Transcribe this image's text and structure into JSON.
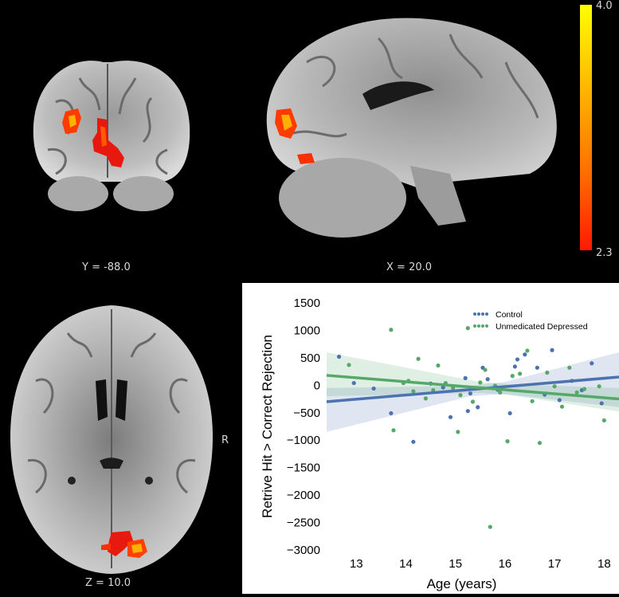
{
  "brain_views": {
    "coronal_label": "Y = -88.0",
    "sagittal_label": "X = 20.0",
    "axial_label": "Z = 10.0",
    "orientation_label": "R"
  },
  "colorbar": {
    "max_label": "4.0",
    "min_label": "2.3",
    "colors": [
      "#ffff00",
      "#ffb400",
      "#ff6a00",
      "#ff1a00"
    ]
  },
  "chart_data": {
    "type": "scatter",
    "xlabel": "Age (years)",
    "ylabel": "Retrive Hit > Correct Rejection",
    "xlim": [
      12.4,
      18.3
    ],
    "ylim": [
      -3000,
      1500
    ],
    "xticks": [
      "13",
      "14",
      "15",
      "16",
      "17",
      "18"
    ],
    "yticks": [
      "1500",
      "1000",
      "500",
      "0",
      "−500",
      "−1000",
      "−1500",
      "−2000",
      "−2500",
      "−3000"
    ],
    "legend_position": "top-right",
    "grid": false,
    "series": [
      {
        "name": "Control",
        "color": "#4c72b0",
        "points": [
          [
            12.65,
            520
          ],
          [
            12.95,
            40
          ],
          [
            13.35,
            -60
          ],
          [
            13.7,
            -510
          ],
          [
            14.15,
            -1030
          ],
          [
            14.5,
            30
          ],
          [
            14.75,
            -40
          ],
          [
            14.9,
            -580
          ],
          [
            15.2,
            130
          ],
          [
            15.25,
            -470
          ],
          [
            15.3,
            -150
          ],
          [
            15.45,
            -400
          ],
          [
            15.55,
            320
          ],
          [
            15.65,
            110
          ],
          [
            15.85,
            -80
          ],
          [
            16.1,
            -510
          ],
          [
            16.2,
            340
          ],
          [
            16.25,
            470
          ],
          [
            16.4,
            560
          ],
          [
            16.65,
            320
          ],
          [
            16.8,
            -170
          ],
          [
            16.95,
            640
          ],
          [
            17.1,
            -270
          ],
          [
            17.35,
            80
          ],
          [
            17.55,
            -90
          ],
          [
            17.75,
            400
          ],
          [
            17.95,
            -330
          ]
        ],
        "fit": [
          [
            12.4,
            -300
          ],
          [
            18.3,
            150
          ]
        ],
        "ci_upper": [
          [
            12.4,
            -50
          ],
          [
            15.3,
            -10
          ],
          [
            16.0,
            60
          ],
          [
            18.3,
            600
          ]
        ],
        "ci_lower": [
          [
            18.3,
            -400
          ],
          [
            16.0,
            -160
          ],
          [
            15.3,
            -200
          ],
          [
            12.4,
            -850
          ]
        ]
      },
      {
        "name": "Unmedicated Depressed",
        "color": "#55a868",
        "points": [
          [
            12.85,
            370
          ],
          [
            13.7,
            1010
          ],
          [
            13.75,
            -820
          ],
          [
            13.95,
            40
          ],
          [
            14.05,
            80
          ],
          [
            14.15,
            -110
          ],
          [
            14.25,
            480
          ],
          [
            14.4,
            -240
          ],
          [
            14.55,
            -90
          ],
          [
            14.65,
            360
          ],
          [
            14.8,
            40
          ],
          [
            14.95,
            -50
          ],
          [
            15.05,
            -850
          ],
          [
            15.1,
            -180
          ],
          [
            15.25,
            1040
          ],
          [
            15.35,
            -300
          ],
          [
            15.5,
            50
          ],
          [
            15.6,
            280
          ],
          [
            15.7,
            -2580
          ],
          [
            15.8,
            -10
          ],
          [
            15.9,
            -130
          ],
          [
            16.05,
            -1020
          ],
          [
            16.15,
            170
          ],
          [
            16.3,
            210
          ],
          [
            16.45,
            630
          ],
          [
            16.55,
            -290
          ],
          [
            16.7,
            -1050
          ],
          [
            16.85,
            230
          ],
          [
            17.0,
            -20
          ],
          [
            17.15,
            -390
          ],
          [
            17.3,
            320
          ],
          [
            17.45,
            -130
          ],
          [
            17.6,
            -70
          ],
          [
            17.9,
            -20
          ],
          [
            18.0,
            -640
          ]
        ],
        "fit": [
          [
            12.4,
            180
          ],
          [
            18.3,
            -250
          ]
        ],
        "ci_upper": [
          [
            12.4,
            600
          ],
          [
            15.5,
            60
          ],
          [
            16.1,
            20
          ],
          [
            18.3,
            -50
          ]
        ],
        "ci_lower": [
          [
            18.3,
            -480
          ],
          [
            16.1,
            -180
          ],
          [
            15.5,
            -140
          ],
          [
            12.4,
            -200
          ]
        ]
      }
    ]
  }
}
